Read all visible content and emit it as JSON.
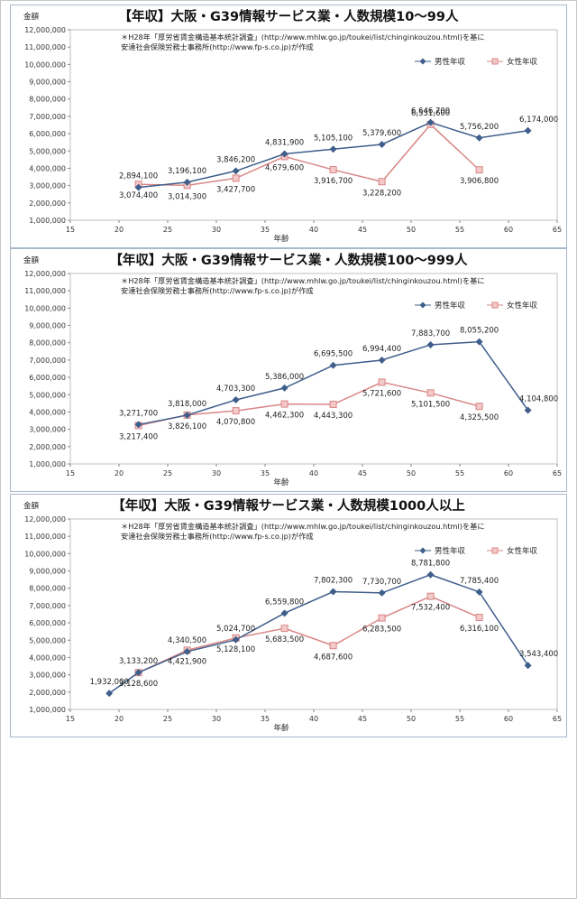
{
  "chart_data": [
    {
      "type": "line",
      "title": "【年収】大阪・G39情報サービス業・人数規模10～99人",
      "ylabel": "金額",
      "xlabel": "年齢",
      "note_lines": [
        "＊H28年「厚労省賃金構造基本統計調査」(http://www.mhlw.go.jp/toukei/list/chinginkouzou.html)を基に",
        "安達社会保険労務士事務所(http://www.fp-s.co.jp)が作成"
      ],
      "xlim": [
        15,
        65
      ],
      "xticks": [
        15,
        20,
        25,
        30,
        35,
        40,
        45,
        50,
        55,
        60,
        65
      ],
      "xtick_labels": [
        "15",
        "20",
        "25",
        "30",
        "35",
        "40",
        "45",
        "50",
        "55",
        "60",
        "65"
      ],
      "ylim": [
        1000000,
        12000000
      ],
      "yticks": [
        1000000,
        2000000,
        3000000,
        4000000,
        5000000,
        6000000,
        7000000,
        8000000,
        9000000,
        10000000,
        11000000,
        12000000
      ],
      "ytick_labels": [
        "1,000,000",
        "2,000,000",
        "3,000,000",
        "4,000,000",
        "5,000,000",
        "6,000,000",
        "7,000,000",
        "8,000,000",
        "9,000,000",
        "10,000,000",
        "11,000,000",
        "12,000,000"
      ],
      "legend_position": "top-right",
      "series": [
        {
          "name": "男性年収",
          "color": "#3f5e8c",
          "marker": "diamond",
          "x": [
            22,
            27,
            32,
            37,
            42,
            47,
            52,
            57,
            62
          ],
          "values": [
            2894100,
            3196100,
            3846200,
            4831900,
            5105100,
            5379600,
            6646700,
            5756200,
            6174000
          ],
          "labels": [
            "2,894,100",
            "3,196,100",
            "3,846,200",
            "4,831,900",
            "5,105,100",
            "5,379,600",
            "6,646,700",
            "5,756,200",
            "6,174,000"
          ]
        },
        {
          "name": "女性年収",
          "color": "#d98686",
          "marker": "square",
          "x": [
            22,
            27,
            32,
            37,
            42,
            47,
            52,
            57
          ],
          "values": [
            3074400,
            3014300,
            3427700,
            4679600,
            3916700,
            3228200,
            6531600,
            3906800
          ],
          "labels": [
            "3,074,400",
            "3,014,300",
            "3,427,700",
            "4,679,600",
            "3,916,700",
            "3,228,200",
            "6,531,600",
            "3,906,800"
          ]
        }
      ]
    },
    {
      "type": "line",
      "title": "【年収】大阪・G39情報サービス業・人数規模100～999人",
      "ylabel": "金額",
      "xlabel": "年齢",
      "note_lines": [
        "＊H28年「厚労省賃金構造基本統計調査」(http://www.mhlw.go.jp/toukei/list/chinginkouzou.html)を基に",
        "安達社会保険労務士事務所(http://www.fp-s.co.jp)が作成"
      ],
      "xlim": [
        15,
        65
      ],
      "xticks": [
        15,
        20,
        25,
        30,
        35,
        40,
        45,
        50,
        55,
        60,
        65
      ],
      "xtick_labels": [
        "15",
        "20",
        "25",
        "30",
        "35",
        "40",
        "45",
        "50",
        "55",
        "60",
        "65"
      ],
      "ylim": [
        1000000,
        12000000
      ],
      "yticks": [
        1000000,
        2000000,
        3000000,
        4000000,
        5000000,
        6000000,
        7000000,
        8000000,
        9000000,
        10000000,
        11000000,
        12000000
      ],
      "ytick_labels": [
        "1,000,000",
        "2,000,000",
        "3,000,000",
        "4,000,000",
        "5,000,000",
        "6,000,000",
        "7,000,000",
        "8,000,000",
        "9,000,000",
        "10,000,000",
        "11,000,000",
        "12,000,000"
      ],
      "legend_position": "top-right",
      "series": [
        {
          "name": "男性年収",
          "color": "#3f5e8c",
          "marker": "diamond",
          "x": [
            22,
            27,
            32,
            37,
            42,
            47,
            52,
            57,
            62
          ],
          "values": [
            3271700,
            3818000,
            4703300,
            5386000,
            6695500,
            6994400,
            7883700,
            8055200,
            4104800
          ],
          "labels": [
            "3,271,700",
            "3,818,000",
            "4,703,300",
            "5,386,000",
            "6,695,500",
            "6,994,400",
            "7,883,700",
            "8,055,200",
            "4,104,800"
          ]
        },
        {
          "name": "女性年収",
          "color": "#d98686",
          "marker": "square",
          "x": [
            22,
            27,
            32,
            37,
            42,
            47,
            52,
            57
          ],
          "values": [
            3217400,
            3826100,
            4070800,
            4462300,
            4443300,
            5721600,
            5101500,
            4325500
          ],
          "labels": [
            "3,217,400",
            "3,826,100",
            "4,070,800",
            "4,462,300",
            "4,443,300",
            "5,721,600",
            "5,101,500",
            "4,325,500"
          ]
        }
      ]
    },
    {
      "type": "line",
      "title": "【年収】大阪・G39情報サービス業・人数規模1000人以上",
      "ylabel": "金額",
      "xlabel": "年齢",
      "note_lines": [
        "＊H28年「厚労省賃金構造基本統計調査」(http://www.mhlw.go.jp/toukei/list/chinginkouzou.html)を基に",
        "安達社会保険労務士事務所(http://www.fp-s.co.jp)が作成"
      ],
      "xlim": [
        15,
        65
      ],
      "xticks": [
        15,
        20,
        25,
        30,
        35,
        40,
        45,
        50,
        55,
        60,
        65
      ],
      "xtick_labels": [
        "15",
        "20",
        "25",
        "30",
        "35",
        "40",
        "45",
        "50",
        "55",
        "60",
        "65"
      ],
      "ylim": [
        1000000,
        12000000
      ],
      "yticks": [
        1000000,
        2000000,
        3000000,
        4000000,
        5000000,
        6000000,
        7000000,
        8000000,
        9000000,
        10000000,
        11000000,
        12000000
      ],
      "ytick_labels": [
        "1,000,000",
        "2,000,000",
        "3,000,000",
        "4,000,000",
        "5,000,000",
        "6,000,000",
        "7,000,000",
        "8,000,000",
        "9,000,000",
        "10,000,000",
        "11,000,000",
        "12,000,000"
      ],
      "legend_position": "top-right",
      "series": [
        {
          "name": "男性年収",
          "color": "#3f5e8c",
          "marker": "diamond",
          "x": [
            19,
            22,
            27,
            32,
            37,
            42,
            47,
            52,
            57,
            62
          ],
          "values": [
            1932000,
            3133200,
            4340500,
            5024700,
            6559800,
            7802300,
            7730700,
            8781800,
            7785400,
            3543400
          ],
          "labels": [
            "1,932,000",
            "3,133,200",
            "4,340,500",
            "5,024,700",
            "6,559,800",
            "7,802,300",
            "7,730,700",
            "8,781,800",
            "7,785,400",
            "3,543,400"
          ]
        },
        {
          "name": "女性年収",
          "color": "#d98686",
          "marker": "square",
          "x": [
            22,
            27,
            32,
            37,
            42,
            47,
            52,
            57
          ],
          "values": [
            3128600,
            4421900,
            5128100,
            5683500,
            4687600,
            6283500,
            7532400,
            6316100
          ],
          "labels": [
            "3,128,600",
            "4,421,900",
            "5,128,100",
            "5,683,500",
            "4,687,600",
            "6,283,500",
            "7,532,400",
            "6,316,100"
          ]
        }
      ]
    }
  ]
}
